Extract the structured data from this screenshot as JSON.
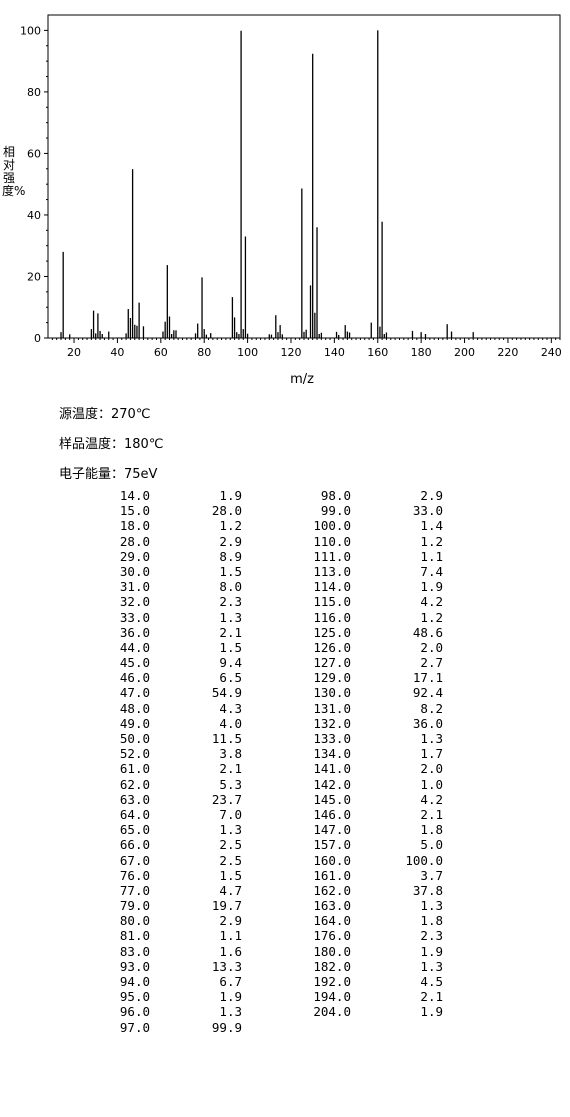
{
  "chart_data": {
    "type": "bar",
    "xlabel": "m/z",
    "ylabel": "相对强度%",
    "xlim": [
      8,
      244
    ],
    "ylim": [
      0,
      105
    ],
    "x_ticks": [
      20,
      40,
      60,
      80,
      100,
      120,
      140,
      160,
      180,
      200,
      220,
      240
    ],
    "y_ticks": [
      0,
      20,
      40,
      60,
      80,
      100
    ],
    "peaks": [
      {
        "x": 14,
        "y": 1.9
      },
      {
        "x": 15,
        "y": 28.0
      },
      {
        "x": 18,
        "y": 1.2
      },
      {
        "x": 28,
        "y": 2.9
      },
      {
        "x": 29,
        "y": 8.9
      },
      {
        "x": 30,
        "y": 1.5
      },
      {
        "x": 31,
        "y": 8.0
      },
      {
        "x": 32,
        "y": 2.3
      },
      {
        "x": 33,
        "y": 1.3
      },
      {
        "x": 36,
        "y": 2.1
      },
      {
        "x": 44,
        "y": 1.5
      },
      {
        "x": 45,
        "y": 9.4
      },
      {
        "x": 46,
        "y": 6.5
      },
      {
        "x": 47,
        "y": 54.9
      },
      {
        "x": 48,
        "y": 4.3
      },
      {
        "x": 49,
        "y": 4.0
      },
      {
        "x": 50,
        "y": 11.5
      },
      {
        "x": 52,
        "y": 3.8
      },
      {
        "x": 61,
        "y": 2.1
      },
      {
        "x": 62,
        "y": 5.3
      },
      {
        "x": 63,
        "y": 23.7
      },
      {
        "x": 64,
        "y": 7.0
      },
      {
        "x": 65,
        "y": 1.3
      },
      {
        "x": 66,
        "y": 2.5
      },
      {
        "x": 67,
        "y": 2.5
      },
      {
        "x": 76,
        "y": 1.5
      },
      {
        "x": 77,
        "y": 4.7
      },
      {
        "x": 79,
        "y": 19.7
      },
      {
        "x": 80,
        "y": 2.9
      },
      {
        "x": 81,
        "y": 1.1
      },
      {
        "x": 83,
        "y": 1.6
      },
      {
        "x": 93,
        "y": 13.3
      },
      {
        "x": 94,
        "y": 6.7
      },
      {
        "x": 95,
        "y": 1.9
      },
      {
        "x": 96,
        "y": 1.3
      },
      {
        "x": 97,
        "y": 99.9
      },
      {
        "x": 98,
        "y": 2.9
      },
      {
        "x": 99,
        "y": 33.0
      },
      {
        "x": 100,
        "y": 1.4
      },
      {
        "x": 110,
        "y": 1.2
      },
      {
        "x": 111,
        "y": 1.1
      },
      {
        "x": 113,
        "y": 7.4
      },
      {
        "x": 114,
        "y": 1.9
      },
      {
        "x": 115,
        "y": 4.2
      },
      {
        "x": 116,
        "y": 1.2
      },
      {
        "x": 125,
        "y": 48.6
      },
      {
        "x": 126,
        "y": 2.0
      },
      {
        "x": 127,
        "y": 2.7
      },
      {
        "x": 129,
        "y": 17.1
      },
      {
        "x": 130,
        "y": 92.4
      },
      {
        "x": 131,
        "y": 8.2
      },
      {
        "x": 132,
        "y": 36.0
      },
      {
        "x": 133,
        "y": 1.3
      },
      {
        "x": 134,
        "y": 1.7
      },
      {
        "x": 141,
        "y": 2.0
      },
      {
        "x": 142,
        "y": 1.0
      },
      {
        "x": 145,
        "y": 4.2
      },
      {
        "x": 146,
        "y": 2.1
      },
      {
        "x": 147,
        "y": 1.8
      },
      {
        "x": 157,
        "y": 5.0
      },
      {
        "x": 160,
        "y": 100.0
      },
      {
        "x": 161,
        "y": 3.7
      },
      {
        "x": 162,
        "y": 37.8
      },
      {
        "x": 163,
        "y": 1.3
      },
      {
        "x": 164,
        "y": 1.8
      },
      {
        "x": 176,
        "y": 2.3
      },
      {
        "x": 180,
        "y": 1.9
      },
      {
        "x": 182,
        "y": 1.3
      },
      {
        "x": 192,
        "y": 4.5
      },
      {
        "x": 194,
        "y": 2.1
      },
      {
        "x": 204,
        "y": 1.9
      }
    ]
  },
  "meta": {
    "source_temp": "源温度：270℃",
    "sample_temp": "样品温度：180℃",
    "electron_energy": "电子能量：75eV"
  },
  "table": {
    "left_mz": [
      "14.0",
      "15.0",
      "18.0",
      "28.0",
      "29.0",
      "30.0",
      "31.0",
      "32.0",
      "33.0",
      "36.0",
      "44.0",
      "45.0",
      "46.0",
      "47.0",
      "48.0",
      "49.0",
      "50.0",
      "52.0",
      "61.0",
      "62.0",
      "63.0",
      "64.0",
      "65.0",
      "66.0",
      "67.0",
      "76.0",
      "77.0",
      "79.0",
      "80.0",
      "81.0",
      "83.0",
      "93.0",
      "94.0",
      "95.0",
      "96.0",
      "97.0"
    ],
    "left_int": [
      "1.9",
      "28.0",
      "1.2",
      "2.9",
      "8.9",
      "1.5",
      "8.0",
      "2.3",
      "1.3",
      "2.1",
      "1.5",
      "9.4",
      "6.5",
      "54.9",
      "4.3",
      "4.0",
      "11.5",
      "3.8",
      "2.1",
      "5.3",
      "23.7",
      "7.0",
      "1.3",
      "2.5",
      "2.5",
      "1.5",
      "4.7",
      "19.7",
      "2.9",
      "1.1",
      "1.6",
      "13.3",
      "6.7",
      "1.9",
      "1.3",
      "99.9"
    ],
    "right_mz": [
      "98.0",
      "99.0",
      "100.0",
      "110.0",
      "111.0",
      "113.0",
      "114.0",
      "115.0",
      "116.0",
      "125.0",
      "126.0",
      "127.0",
      "129.0",
      "130.0",
      "131.0",
      "132.0",
      "133.0",
      "134.0",
      "141.0",
      "142.0",
      "145.0",
      "146.0",
      "147.0",
      "157.0",
      "160.0",
      "161.0",
      "162.0",
      "163.0",
      "164.0",
      "176.0",
      "180.0",
      "182.0",
      "192.0",
      "194.0",
      "204.0"
    ],
    "right_int": [
      "2.9",
      "33.0",
      "1.4",
      "1.2",
      "1.1",
      "7.4",
      "1.9",
      "4.2",
      "1.2",
      "48.6",
      "2.0",
      "2.7",
      "17.1",
      "92.4",
      "8.2",
      "36.0",
      "1.3",
      "1.7",
      "2.0",
      "1.0",
      "4.2",
      "2.1",
      "1.8",
      "5.0",
      "100.0",
      "3.7",
      "37.8",
      "1.3",
      "1.8",
      "2.3",
      "1.9",
      "1.3",
      "4.5",
      "2.1",
      "1.9"
    ]
  }
}
